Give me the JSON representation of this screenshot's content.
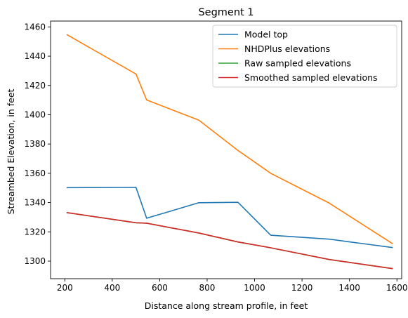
{
  "chart_data": {
    "type": "line",
    "title": "Segment 1",
    "xlabel": "Distance along stream profile, in feet",
    "ylabel": "Streambed Elevation, in feet",
    "xlim": [
      140,
      1620
    ],
    "ylim": [
      1288,
      1464
    ],
    "xticks": [
      200,
      400,
      600,
      800,
      1000,
      1200,
      1400,
      1600
    ],
    "yticks": [
      1300,
      1320,
      1340,
      1360,
      1380,
      1400,
      1420,
      1440,
      1460
    ],
    "legend_position": "top-right",
    "grid": false,
    "series": [
      {
        "name": "Model top",
        "color": "#1f77b4",
        "x": [
          210,
          500,
          545,
          765,
          930,
          1068,
          1315,
          1580
        ],
        "y": [
          1350.2,
          1350.4,
          1329.3,
          1339.9,
          1340.2,
          1317.7,
          1315.0,
          1309.3
        ]
      },
      {
        "name": "NHDPlus elevations",
        "color": "#ff7f0e",
        "x": [
          210,
          500,
          545,
          765,
          930,
          1068,
          1315,
          1580
        ],
        "y": [
          1454.6,
          1427.8,
          1410.1,
          1396.3,
          1375.6,
          1360.0,
          1339.6,
          1312.1
        ]
      },
      {
        "name": "Raw sampled elevations",
        "color": "#2ca02c",
        "x": [
          210,
          500,
          545,
          765,
          930,
          1068,
          1315,
          1580
        ],
        "y": [
          1333.1,
          1326.2,
          1325.9,
          1319.2,
          1313.1,
          1309.1,
          1301.1,
          1294.9
        ]
      },
      {
        "name": "Smoothed sampled elevations",
        "color": "#d62728",
        "x": [
          210,
          500,
          545,
          765,
          930,
          1068,
          1315,
          1580
        ],
        "y": [
          1333.1,
          1326.2,
          1325.9,
          1319.2,
          1313.1,
          1309.1,
          1301.1,
          1294.9
        ]
      }
    ]
  }
}
